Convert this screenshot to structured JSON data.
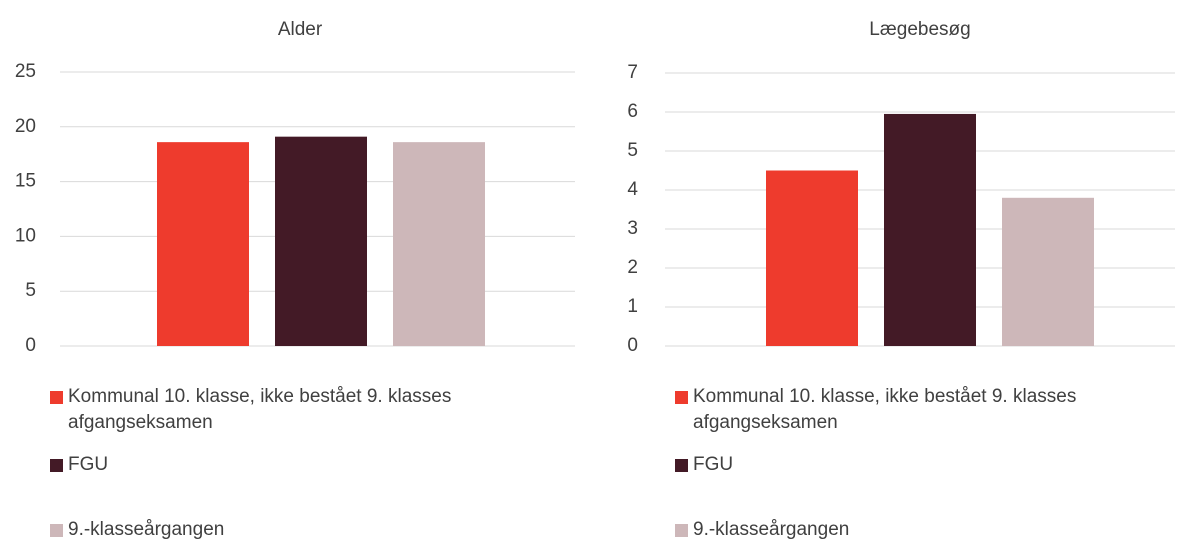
{
  "chart_data": [
    {
      "type": "bar",
      "title": "Alder",
      "categories": [
        null
      ],
      "series": [
        {
          "name": "Kommunal 10. klasse, ikke bestået 9. klasses afgangseksamen",
          "color": "#ee3b2d",
          "values": [
            18.6
          ]
        },
        {
          "name": "FGU",
          "color": "#431a26",
          "values": [
            19.1
          ]
        },
        {
          "name": "9.-klasseårgangen",
          "color": "#cdb7b9",
          "values": [
            18.6
          ]
        }
      ],
      "ylim": [
        0,
        25
      ],
      "yticks": [
        0,
        5,
        10,
        15,
        20,
        25
      ],
      "grid": true,
      "legend": "bottom"
    },
    {
      "type": "bar",
      "title": "Lægebesøg",
      "categories": [
        null
      ],
      "series": [
        {
          "name": "Kommunal 10. klasse, ikke bestået 9. klasses afgangseksamen",
          "color": "#ee3b2d",
          "values": [
            4.5
          ]
        },
        {
          "name": "FGU",
          "color": "#431a26",
          "values": [
            5.95
          ]
        },
        {
          "name": "9.-klasseårgangen",
          "color": "#cdb7b9",
          "values": [
            3.8
          ]
        }
      ],
      "ylim": [
        0,
        7
      ],
      "yticks": [
        0,
        1,
        2,
        3,
        4,
        5,
        6,
        7
      ],
      "grid": true,
      "legend": "bottom"
    }
  ]
}
